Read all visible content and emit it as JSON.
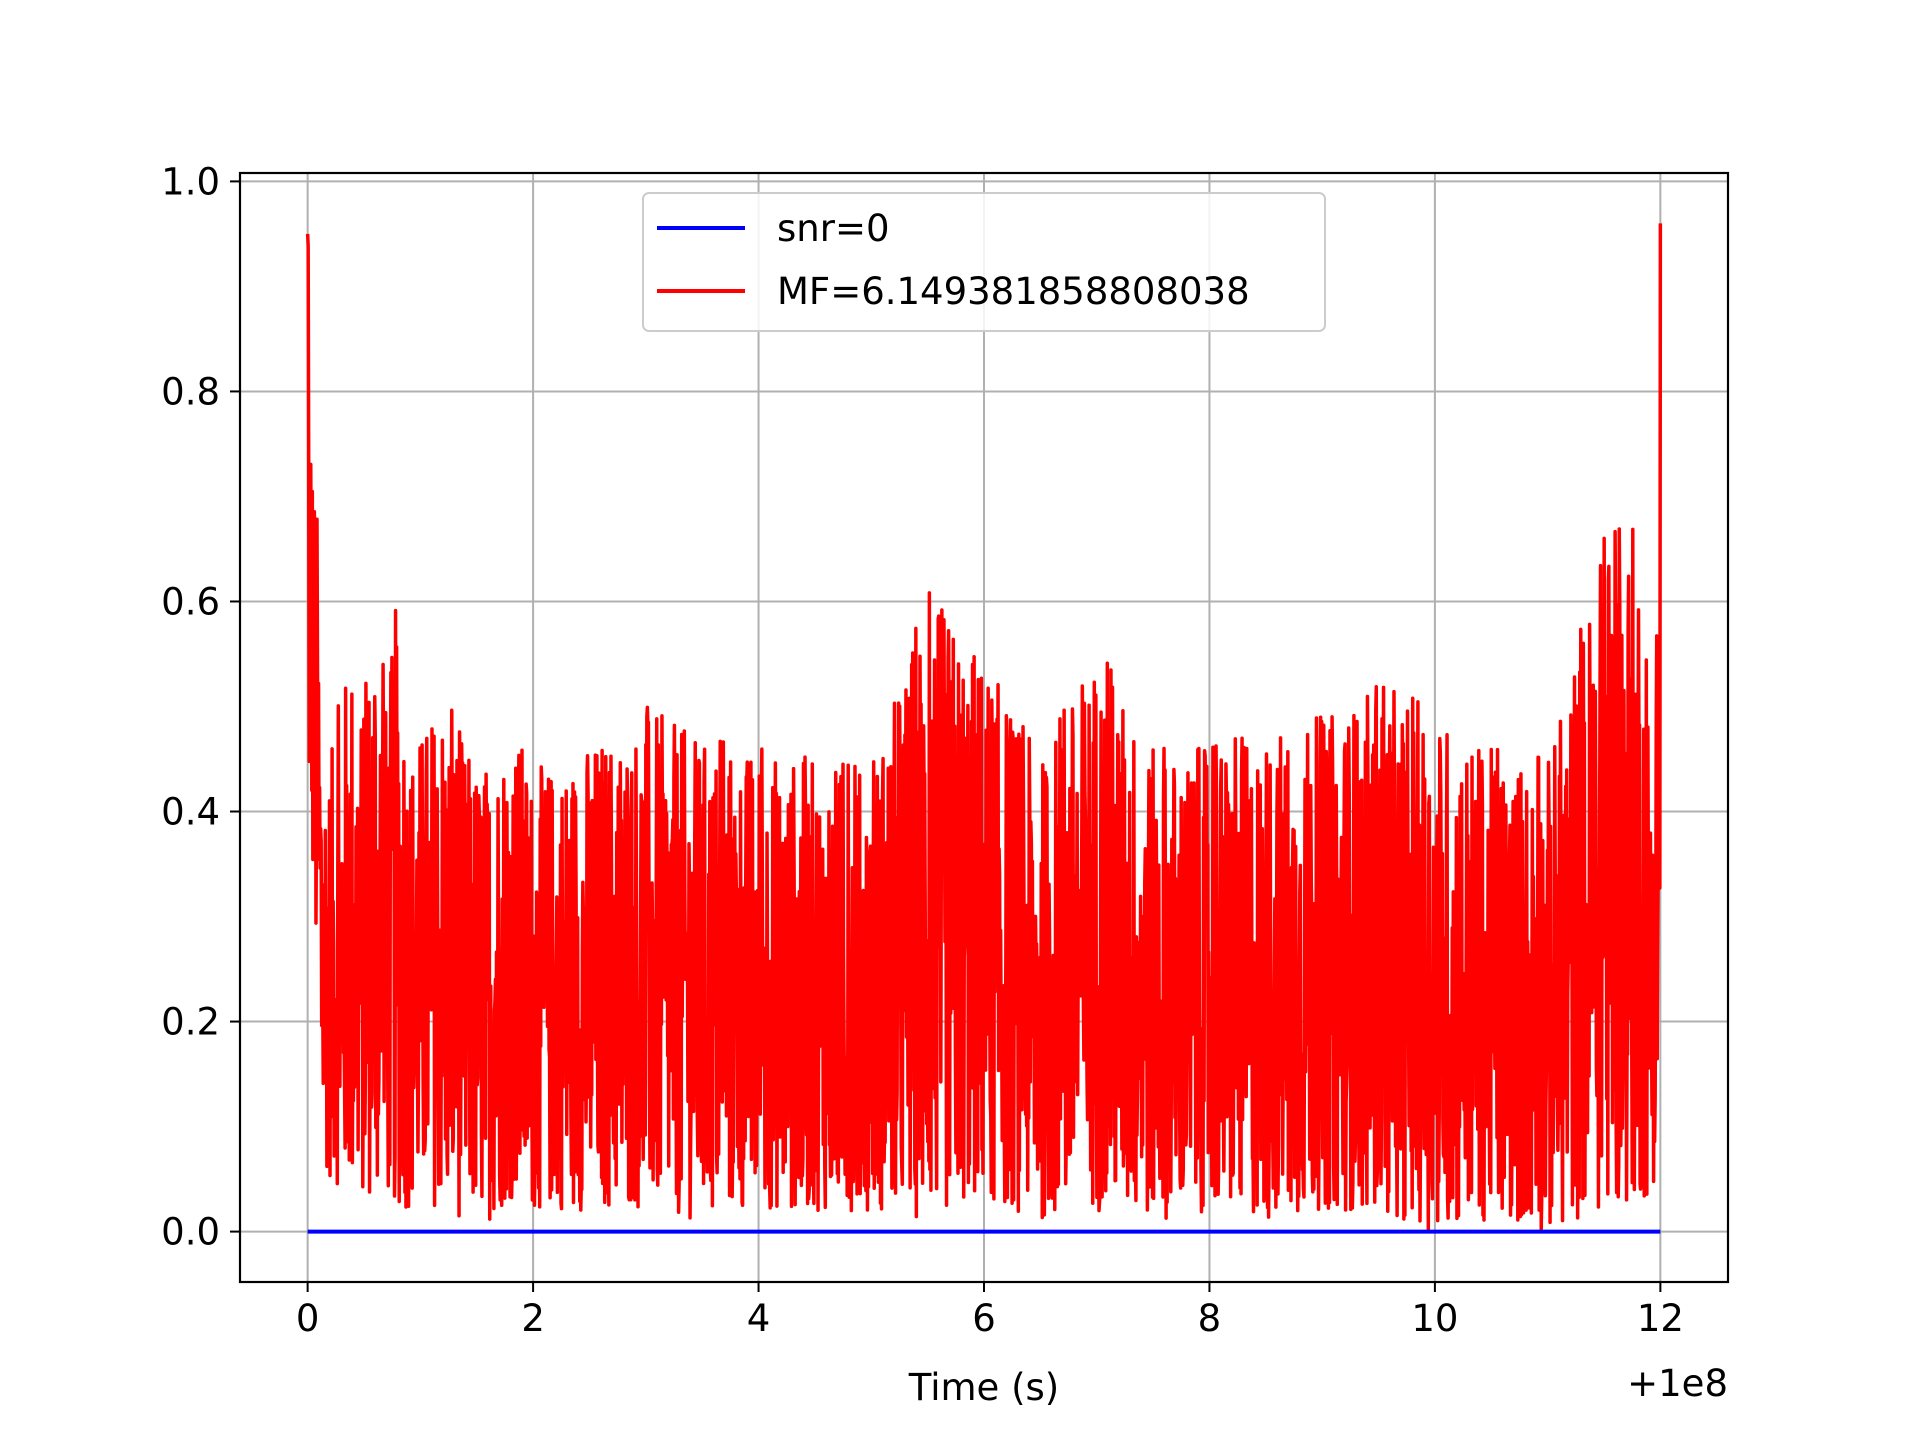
{
  "chart_data": {
    "type": "line",
    "title": "",
    "xlabel": "Time (s)",
    "ylabel": "",
    "x_offset_label": "+1e8",
    "xlim": [
      -0.6,
      12.6
    ],
    "ylim": [
      -0.048,
      1.008
    ],
    "x_ticks": [
      0,
      2,
      4,
      6,
      8,
      10,
      12
    ],
    "x_tick_labels": [
      "0",
      "2",
      "4",
      "6",
      "8",
      "10",
      "12"
    ],
    "y_ticks": [
      0.0,
      0.2,
      0.4,
      0.6,
      0.8,
      1.0
    ],
    "y_tick_labels": [
      "0.0",
      "0.2",
      "0.4",
      "0.6",
      "0.8",
      "1.0"
    ],
    "grid": true,
    "legend_position": "upper center",
    "series": [
      {
        "name": "snr=0",
        "color": "#0000ff",
        "x": [
          0,
          12
        ],
        "y": [
          0,
          0
        ]
      },
      {
        "name": "MF=6.149381858808038",
        "color": "#ff0000",
        "noisy": true,
        "x": [
          0.0,
          0.02,
          0.04,
          0.06,
          0.08,
          0.1,
          0.12,
          0.14,
          0.16,
          0.2,
          0.3,
          0.4,
          0.5,
          0.6,
          0.7,
          0.8,
          0.9,
          1.0,
          1.2,
          1.4,
          1.6,
          1.8,
          2.0,
          2.5,
          3.0,
          3.5,
          4.0,
          4.5,
          5.0,
          5.5,
          6.0,
          6.5,
          7.0,
          7.5,
          8.0,
          8.5,
          9.0,
          9.5,
          10.0,
          10.5,
          11.0,
          11.5,
          11.8,
          11.9,
          11.95,
          12.0
        ],
        "upper": [
          0.95,
          0.9,
          0.77,
          0.73,
          0.71,
          0.6,
          0.55,
          0.5,
          0.47,
          0.45,
          0.52,
          0.56,
          0.5,
          0.63,
          0.5,
          0.62,
          0.47,
          0.48,
          0.52,
          0.46,
          0.45,
          0.5,
          0.44,
          0.47,
          0.5,
          0.47,
          0.46,
          0.45,
          0.44,
          0.61,
          0.55,
          0.45,
          0.56,
          0.46,
          0.46,
          0.48,
          0.49,
          0.52,
          0.5,
          0.46,
          0.45,
          0.66,
          0.68,
          0.5,
          0.45,
          0.96
        ],
        "lower": [
          0.48,
          0.33,
          0.35,
          0.25,
          0.23,
          0.14,
          0.02,
          0.05,
          0.06,
          0.05,
          0.04,
          0.03,
          0.03,
          0.03,
          0.03,
          0.02,
          0.02,
          0.03,
          0.02,
          0.01,
          0.01,
          0.03,
          0.02,
          0.02,
          0.02,
          0.01,
          0.02,
          0.02,
          0.02,
          0.01,
          0.03,
          0.01,
          0.02,
          0.01,
          0.02,
          0.01,
          0.02,
          0.02,
          0.0,
          0.01,
          0.0,
          0.02,
          0.03,
          0.03,
          0.05,
          0.11
        ]
      }
    ]
  }
}
